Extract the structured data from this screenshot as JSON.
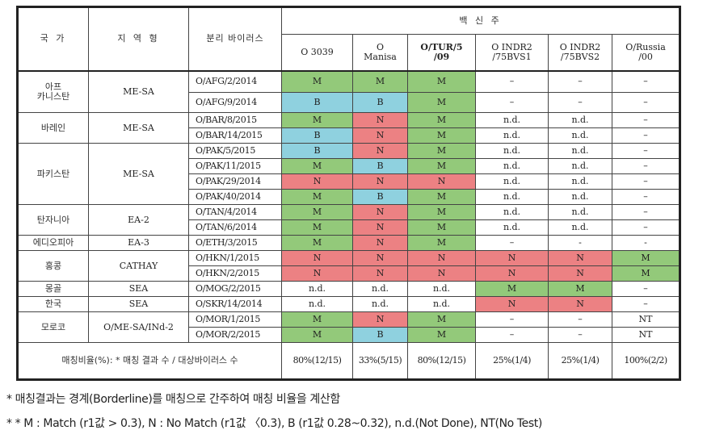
{
  "table": {
    "headers": {
      "country": "국 가",
      "region": "지 역 형",
      "isolate": "분리 바이러스",
      "vaccine_group": "백 신 주",
      "vaccines": [
        "O 3039",
        "O\nManisa",
        "O/TUR/5\n/09",
        "O INDR2\n/75BVS1",
        "O INDR2\n/75BVS2",
        "O/Russia\n/00"
      ]
    },
    "groups": [
      {
        "country": "아프\n카니스탄",
        "region": "ME-SA",
        "rows": [
          {
            "isolate": "O/AFG/2/2014",
            "values": [
              "M",
              "M",
              "M",
              "–",
              "–",
              "–"
            ]
          },
          {
            "isolate": "O/AFG/9/2014",
            "values": [
              "B",
              "B",
              "M",
              "–",
              "–",
              "–"
            ]
          }
        ]
      },
      {
        "country": "바레인",
        "region": "ME-SA",
        "rows": [
          {
            "isolate": "O/BAR/8/2015",
            "values": [
              "M",
              "N",
              "M",
              "n.d.",
              "n.d.",
              "–"
            ]
          },
          {
            "isolate": "O/BAR/14/2015",
            "values": [
              "B",
              "N",
              "M",
              "n.d.",
              "n.d.",
              "–"
            ]
          }
        ]
      },
      {
        "country": "파키스탄",
        "region": "ME-SA",
        "rows": [
          {
            "isolate": "O/PAK/5/2015",
            "values": [
              "B",
              "N",
              "M",
              "n.d.",
              "n.d.",
              "–"
            ]
          },
          {
            "isolate": "O/PAK/11/2015",
            "values": [
              "M",
              "B",
              "M",
              "n.d.",
              "n.d.",
              "–"
            ]
          },
          {
            "isolate": "O/PAK/29/2014",
            "values": [
              "N",
              "N",
              "N",
              "n.d.",
              "n.d.",
              "–"
            ]
          },
          {
            "isolate": "O/PAK/40/2014",
            "values": [
              "M",
              "B",
              "M",
              "n.d.",
              "n.d.",
              "–"
            ]
          }
        ]
      },
      {
        "country": "탄자니아",
        "region": "EA-2",
        "rows": [
          {
            "isolate": "O/TAN/4/2014",
            "values": [
              "M",
              "N",
              "M",
              "n.d.",
              "n.d.",
              "–"
            ]
          },
          {
            "isolate": "O/TAN/6/2014",
            "values": [
              "M",
              "N",
              "M",
              "n.d.",
              "n.d.",
              "–"
            ]
          }
        ]
      },
      {
        "country": "에디오피아",
        "region": "EA-3",
        "rows": [
          {
            "isolate": "O/ETH/3/2015",
            "values": [
              "M",
              "N",
              "M",
              "–",
              "-",
              "-"
            ]
          }
        ]
      },
      {
        "country": "홍콩",
        "region": "CATHAY",
        "rows": [
          {
            "isolate": "O/HKN/1/2015",
            "values": [
              "N",
              "N",
              "N",
              "N",
              "N",
              "M"
            ]
          },
          {
            "isolate": "O/HKN/2/2015",
            "values": [
              "N",
              "N",
              "N",
              "N",
              "N",
              "M"
            ]
          }
        ]
      },
      {
        "country": "몽골",
        "region": "SEA",
        "rows": [
          {
            "isolate": "O/MOG/2/2015",
            "values": [
              "n.d.",
              "n.d.",
              "n.d.",
              "M",
              "M",
              "–"
            ]
          }
        ]
      },
      {
        "country": "한국",
        "region": "SEA",
        "rows": [
          {
            "isolate": "O/SKR/14/2014",
            "values": [
              "n.d.",
              "n.d.",
              "n.d.",
              "N",
              "N",
              "–"
            ]
          }
        ]
      },
      {
        "country": "모로코",
        "region": "O/ME-SA/INd-2",
        "rows": [
          {
            "isolate": "O/MOR/1/2015",
            "values": [
              "M",
              "N",
              "M",
              "–",
              "–",
              "NT"
            ]
          },
          {
            "isolate": "O/MOR/2/2015",
            "values": [
              "M",
              "B",
              "M",
              "–",
              "–",
              "NT"
            ]
          }
        ]
      }
    ],
    "summary": {
      "label": "매칭비율(%): * 매칭 결과 수 / 대상바이러스 수",
      "values": [
        "80%(12/15)",
        "33%(5/15)",
        "80%(12/15)",
        "25%(1/4)",
        "25%(1/4)",
        "100%(2/2)"
      ]
    }
  },
  "legend_colors": {
    "M": "#93c97a",
    "N": "#ec8183",
    "B": "#8fd1df"
  },
  "notes": [
    "* 매칭결과는 경계(Borderline)를 매칭으로 간주하여 매칭 비율을 계산함",
    "* * M : Match (r1값 > 0.3), N : No Match (r1값 〈0.3), B (r1값 0.28~0.32), n.d.(Not Done), NT(No Test)"
  ]
}
